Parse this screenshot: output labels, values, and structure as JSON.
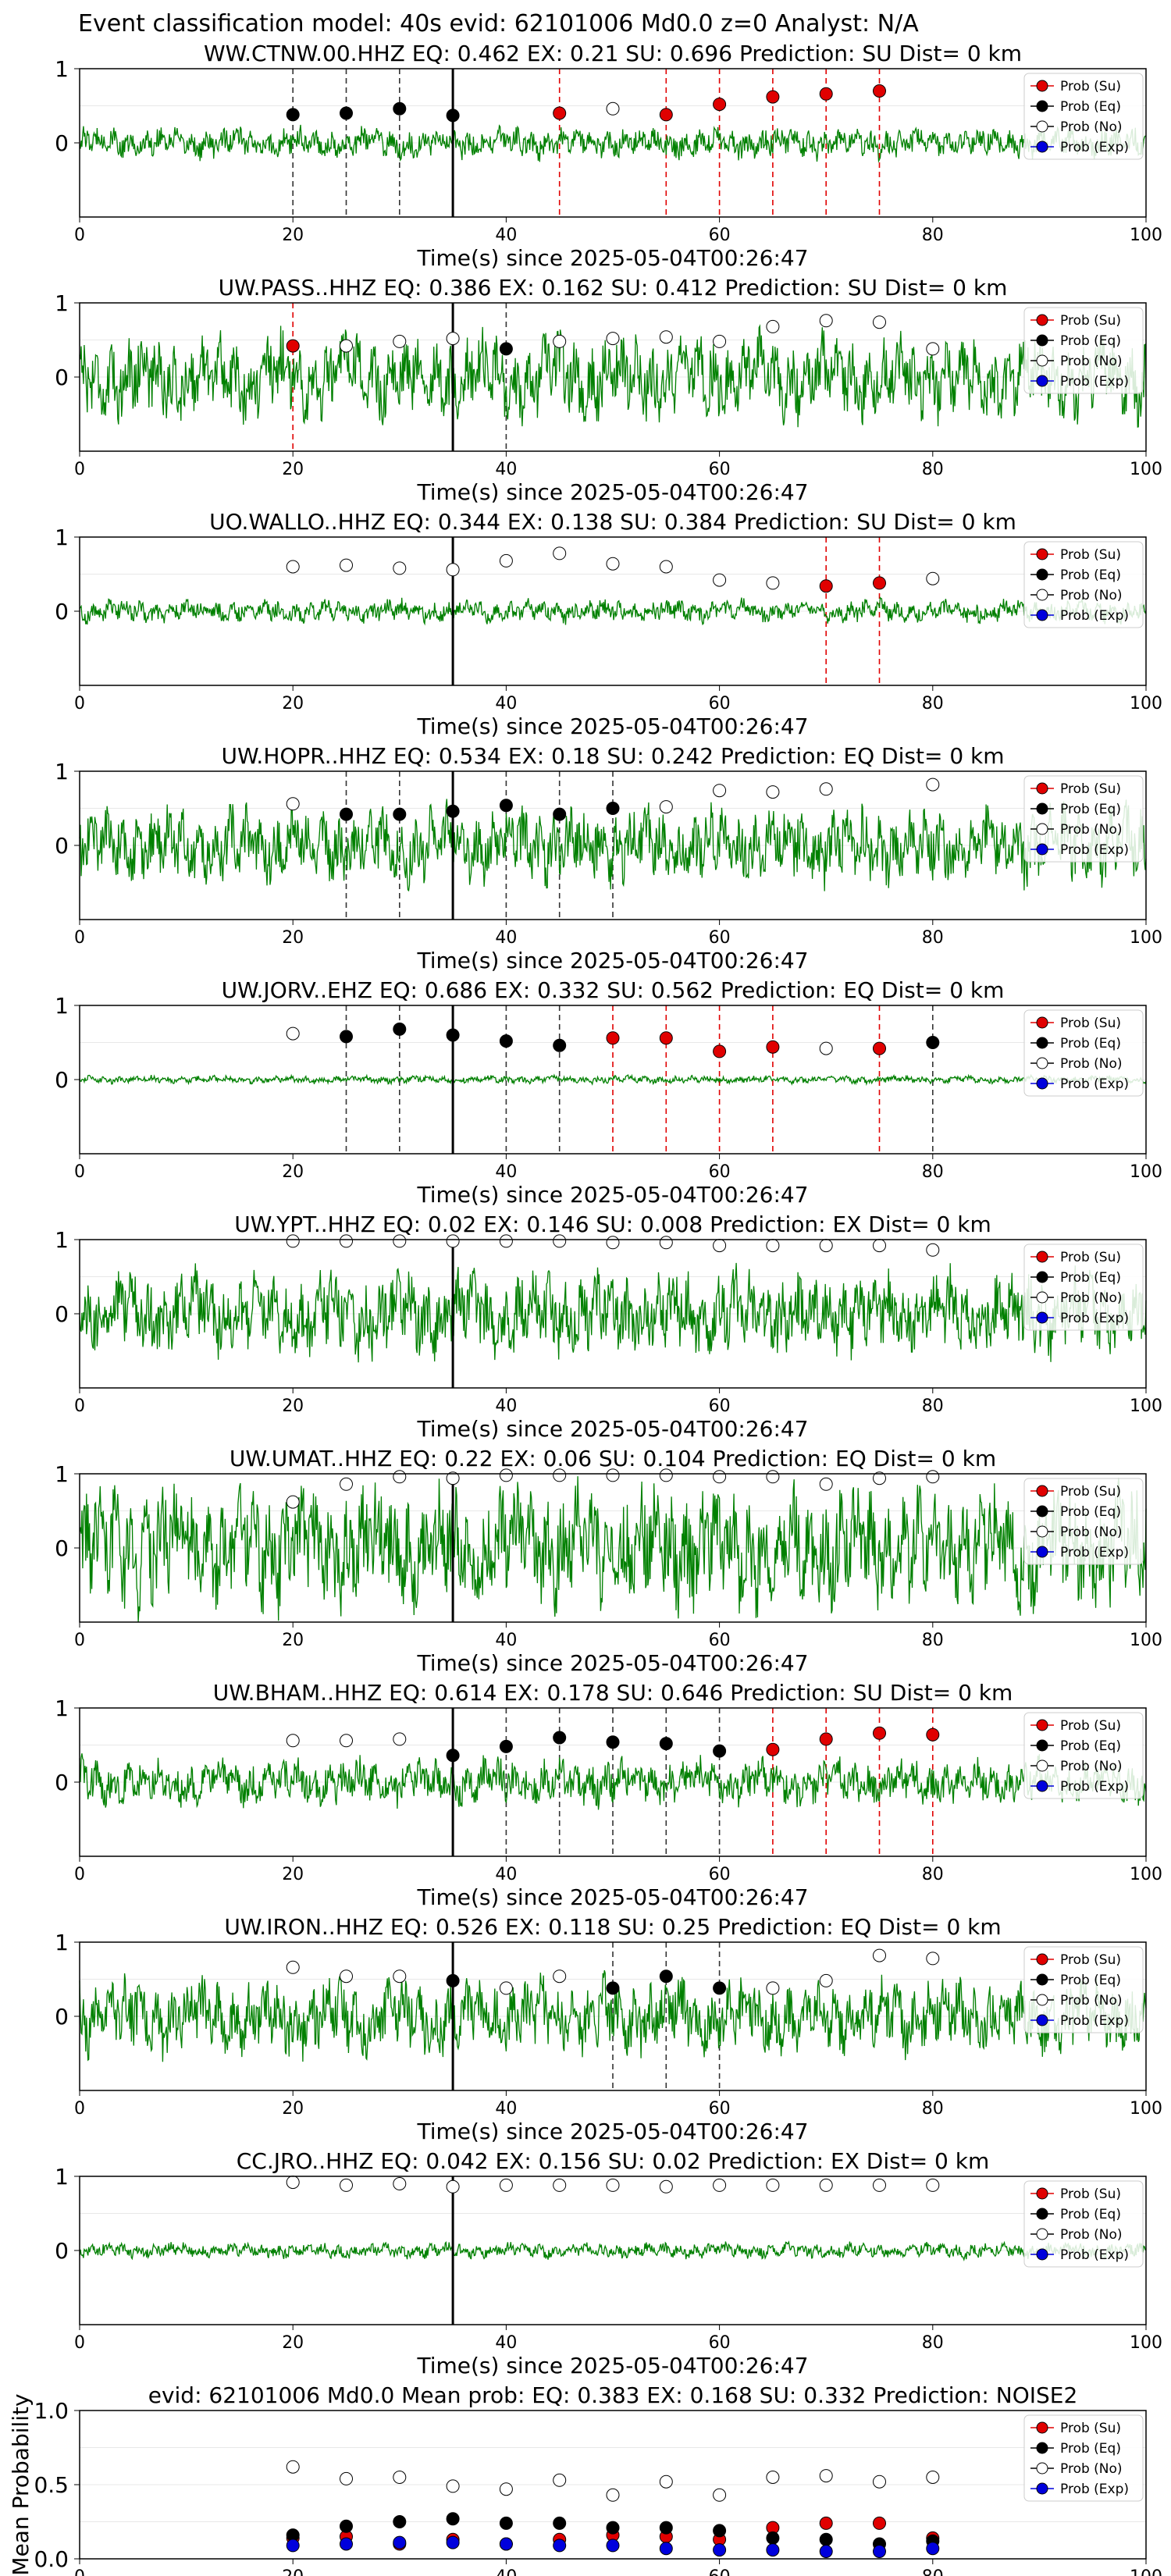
{
  "figure_title": "Event classification model: 40s evid: 62101006 Md0.0 z=0 Analyst: N/A",
  "xlabel": "Time(s) since 2025-05-04T00:26:47",
  "x_ticks": [
    "0",
    "20",
    "40",
    "60",
    "80",
    "100"
  ],
  "y_ticks_panel": [
    "1",
    "0"
  ],
  "legend": [
    "Prob (Su)",
    "Prob (Eq)",
    "Prob (No)",
    "Prob (Exp)"
  ],
  "colors": {
    "su": "#e00000",
    "eq": "#000000",
    "no": "#ffffff",
    "exp": "#0000dd",
    "trace": "#008000"
  },
  "chart_data": [
    {
      "type": "line",
      "title": "WW.CTNW.00.HHZ   EQ: 0.462  EX: 0.21  SU: 0.696   Prediction: SU    Dist= 0 km",
      "xlim": [
        0,
        100
      ],
      "ylim": [
        -1,
        1
      ],
      "trace_amplitude": 0.2,
      "t_marker": 35,
      "times": [
        20,
        25,
        30,
        35,
        40,
        45,
        50,
        55,
        60,
        65,
        70,
        75,
        80
      ],
      "shown": [
        "eq",
        "eq",
        "eq",
        "eq",
        "",
        "su",
        "no",
        "su",
        "su",
        "su",
        "su",
        "su",
        ""
      ],
      "values": [
        0.38,
        0.4,
        0.46,
        0.37,
        null,
        0.4,
        0.46,
        0.38,
        0.52,
        0.62,
        0.66,
        0.7,
        null
      ]
    },
    {
      "type": "line",
      "title": "UW.PASS..HHZ   EQ: 0.386  EX: 0.162  SU: 0.412   Prediction: SU    Dist= 0 km",
      "xlim": [
        0,
        100
      ],
      "ylim": [
        -1,
        1
      ],
      "trace_amplitude": 0.55,
      "t_marker": 35,
      "times": [
        20,
        25,
        30,
        35,
        40,
        45,
        50,
        55,
        60,
        65,
        70,
        75,
        80
      ],
      "shown": [
        "su",
        "no",
        "no",
        "no",
        "eq",
        "no",
        "no",
        "no",
        "no",
        "no",
        "no",
        "no",
        "no"
      ],
      "values": [
        0.42,
        0.42,
        0.48,
        0.52,
        0.38,
        0.48,
        0.52,
        0.54,
        0.48,
        0.68,
        0.76,
        0.74,
        0.38
      ]
    },
    {
      "type": "line",
      "title": "UO.WALLO..HHZ   EQ: 0.344  EX: 0.138  SU: 0.384   Prediction: SU    Dist= 0 km",
      "xlim": [
        0,
        100
      ],
      "ylim": [
        -1,
        1
      ],
      "trace_amplitude": 0.15,
      "t_marker": 35,
      "times": [
        20,
        25,
        30,
        35,
        40,
        45,
        50,
        55,
        60,
        65,
        70,
        75,
        80
      ],
      "shown": [
        "no",
        "no",
        "no",
        "no",
        "no",
        "no",
        "no",
        "no",
        "no",
        "no",
        "su",
        "su",
        "no"
      ],
      "values": [
        0.6,
        0.62,
        0.58,
        0.56,
        0.68,
        0.78,
        0.64,
        0.6,
        0.42,
        0.38,
        0.34,
        0.38,
        0.44
      ]
    },
    {
      "type": "line",
      "title": "UW.HOPR..HHZ   EQ: 0.534  EX: 0.18  SU: 0.242   Prediction: EQ    Dist= 0 km",
      "xlim": [
        0,
        100
      ],
      "ylim": [
        -1,
        1
      ],
      "trace_amplitude": 0.5,
      "t_marker": 35,
      "times": [
        20,
        25,
        30,
        35,
        40,
        45,
        50,
        55,
        60,
        65,
        70,
        75,
        80
      ],
      "shown": [
        "no",
        "eq",
        "eq",
        "eq",
        "eq",
        "eq",
        "eq",
        "no",
        "no",
        "no",
        "no",
        "",
        "no"
      ],
      "values": [
        0.56,
        0.42,
        0.42,
        0.46,
        0.54,
        0.42,
        0.5,
        0.52,
        0.74,
        0.72,
        0.76,
        null,
        0.82
      ]
    },
    {
      "type": "line",
      "title": "UW.JORV..EHZ   EQ: 0.686  EX: 0.332  SU: 0.562   Prediction: EQ    Dist= 0 km",
      "xlim": [
        0,
        100
      ],
      "ylim": [
        -1,
        1
      ],
      "trace_amplitude": 0.05,
      "t_marker": 35,
      "times": [
        20,
        25,
        30,
        35,
        40,
        45,
        50,
        55,
        60,
        65,
        70,
        75,
        80
      ],
      "shown": [
        "no",
        "eq",
        "eq",
        "eq",
        "eq",
        "eq",
        "su",
        "su",
        "su",
        "su",
        "no",
        "su",
        "eq"
      ],
      "values": [
        0.62,
        0.58,
        0.68,
        0.6,
        0.52,
        0.46,
        0.56,
        0.56,
        0.38,
        0.44,
        0.42,
        0.42,
        0.5
      ]
    },
    {
      "type": "line",
      "title": "UW.YPT..HHZ   EQ: 0.02  EX: 0.146  SU: 0.008   Prediction: EX    Dist= 0 km",
      "xlim": [
        0,
        100
      ],
      "ylim": [
        -1,
        1
      ],
      "trace_amplitude": 0.55,
      "t_marker": 35,
      "times": [
        20,
        25,
        30,
        35,
        40,
        45,
        50,
        55,
        60,
        65,
        70,
        75,
        80
      ],
      "shown": [
        "no",
        "no",
        "no",
        "no",
        "no",
        "no",
        "no",
        "no",
        "no",
        "no",
        "no",
        "no",
        "no"
      ],
      "values": [
        0.98,
        0.98,
        0.98,
        0.98,
        0.98,
        0.98,
        0.96,
        0.96,
        0.92,
        0.92,
        0.92,
        0.92,
        0.86
      ]
    },
    {
      "type": "line",
      "title": "UW.UMAT..HHZ   EQ: 0.22  EX: 0.06  SU: 0.104   Prediction: EQ    Dist= 0 km",
      "xlim": [
        0,
        100
      ],
      "ylim": [
        -1,
        1
      ],
      "trace_amplitude": 0.8,
      "t_marker": 35,
      "times": [
        20,
        25,
        30,
        35,
        40,
        45,
        50,
        55,
        60,
        65,
        70,
        75,
        80
      ],
      "shown": [
        "no",
        "no",
        "no",
        "no",
        "no",
        "no",
        "no",
        "no",
        "no",
        "no",
        "no",
        "no",
        "no"
      ],
      "values": [
        0.62,
        0.86,
        0.96,
        0.94,
        0.98,
        0.98,
        0.98,
        0.98,
        0.96,
        0.96,
        0.86,
        0.94,
        0.96
      ]
    },
    {
      "type": "line",
      "title": "UW.BHAM..HHZ   EQ: 0.614  EX: 0.178  SU: 0.646   Prediction: SU    Dist= 0 km",
      "xlim": [
        0,
        100
      ],
      "ylim": [
        -1,
        1
      ],
      "trace_amplitude": 0.3,
      "t_marker": 35,
      "times": [
        20,
        25,
        30,
        35,
        40,
        45,
        50,
        55,
        60,
        65,
        70,
        75,
        80
      ],
      "shown": [
        "no",
        "no",
        "no",
        "eq",
        "eq",
        "eq",
        "eq",
        "eq",
        "eq",
        "su",
        "su",
        "su",
        "su"
      ],
      "values": [
        0.56,
        0.56,
        0.58,
        0.36,
        0.48,
        0.6,
        0.54,
        0.52,
        0.42,
        0.44,
        0.58,
        0.66,
        0.64
      ]
    },
    {
      "type": "line",
      "title": "UW.IRON..HHZ   EQ: 0.526  EX: 0.118  SU: 0.25   Prediction: EQ    Dist= 0 km",
      "xlim": [
        0,
        100
      ],
      "ylim": [
        -1,
        1
      ],
      "trace_amplitude": 0.5,
      "t_marker": 35,
      "times": [
        20,
        25,
        30,
        35,
        40,
        45,
        50,
        55,
        60,
        65,
        70,
        75,
        80
      ],
      "shown": [
        "no",
        "no",
        "no",
        "eq",
        "no",
        "no",
        "eq",
        "eq",
        "eq",
        "no",
        "no",
        "no",
        "no"
      ],
      "values": [
        0.66,
        0.54,
        0.54,
        0.48,
        0.38,
        0.54,
        0.38,
        0.54,
        0.38,
        0.38,
        0.48,
        0.82,
        0.78
      ]
    },
    {
      "type": "line",
      "title": "CC.JRO..HHZ   EQ: 0.042  EX: 0.156  SU: 0.02   Prediction: EX    Dist= 0 km",
      "xlim": [
        0,
        100
      ],
      "ylim": [
        -1,
        1
      ],
      "trace_amplitude": 0.1,
      "t_marker": 35,
      "times": [
        20,
        25,
        30,
        35,
        40,
        45,
        50,
        55,
        60,
        65,
        70,
        75,
        80
      ],
      "shown": [
        "no",
        "no",
        "no",
        "no",
        "no",
        "no",
        "no",
        "no",
        "no",
        "no",
        "no",
        "no",
        "no"
      ],
      "values": [
        0.92,
        0.88,
        0.9,
        0.86,
        0.88,
        0.88,
        0.88,
        0.86,
        0.88,
        0.88,
        0.88,
        0.88,
        0.88
      ]
    },
    {
      "type": "scatter",
      "title": "evid: 62101006   Md0.0    Mean prob:    EQ: 0.383  EX: 0.168  SU: 0.332   Prediction: NOISE2",
      "ylabel": "Mean Probability",
      "xlim": [
        0,
        100
      ],
      "ylim": [
        0,
        1
      ],
      "y_ticks": [
        "1.0",
        "0.5",
        "0.0"
      ],
      "x": [
        20,
        25,
        30,
        35,
        40,
        45,
        50,
        55,
        60,
        65,
        70,
        75,
        80
      ],
      "series": [
        {
          "name": "Prob (Su)",
          "key": "su",
          "values": [
            0.14,
            0.15,
            0.1,
            0.13,
            0.1,
            0.13,
            0.16,
            0.15,
            0.13,
            0.21,
            0.24,
            0.24,
            0.14
          ]
        },
        {
          "name": "Prob (Eq)",
          "key": "eq",
          "values": [
            0.16,
            0.22,
            0.25,
            0.27,
            0.24,
            0.24,
            0.21,
            0.21,
            0.19,
            0.14,
            0.13,
            0.1,
            0.12
          ]
        },
        {
          "name": "Prob (No)",
          "key": "no",
          "values": [
            0.62,
            0.54,
            0.55,
            0.49,
            0.47,
            0.53,
            0.43,
            0.52,
            0.43,
            0.55,
            0.56,
            0.52,
            0.55
          ]
        },
        {
          "name": "Prob (Exp)",
          "key": "exp",
          "values": [
            0.09,
            0.1,
            0.11,
            0.11,
            0.1,
            0.09,
            0.09,
            0.07,
            0.06,
            0.06,
            0.05,
            0.05,
            0.07
          ]
        }
      ]
    }
  ]
}
